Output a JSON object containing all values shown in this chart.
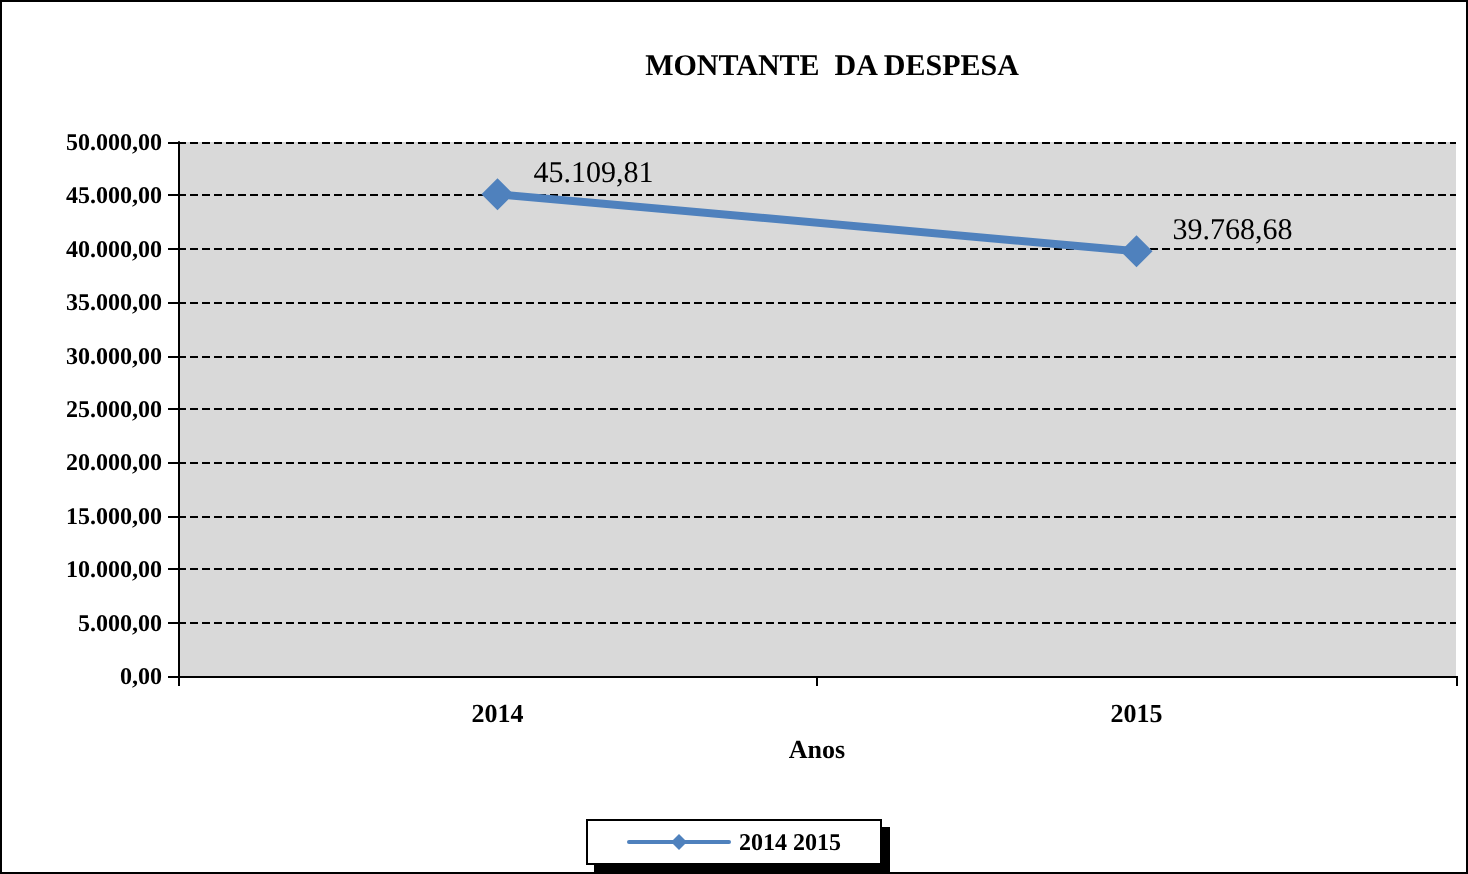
{
  "chart_data": {
    "type": "line",
    "title": "MONTANTE  DA DESPESA",
    "xlabel": "Anos",
    "categories": [
      "2014",
      "2015"
    ],
    "series": [
      {
        "name": "2014 2015",
        "color": "#4f81bd",
        "values": [
          45109.81,
          39768.68
        ],
        "value_labels": [
          "45.109,81",
          "39.768,68"
        ]
      }
    ],
    "ylim": [
      0,
      50000
    ],
    "yticks": [
      {
        "value": 0,
        "label": "0,00"
      },
      {
        "value": 5000,
        "label": "5.000,00"
      },
      {
        "value": 10000,
        "label": "10.000,00"
      },
      {
        "value": 15000,
        "label": "15.000,00"
      },
      {
        "value": 20000,
        "label": "20.000,00"
      },
      {
        "value": 25000,
        "label": "25.000,00"
      },
      {
        "value": 30000,
        "label": "30.000,00"
      },
      {
        "value": 35000,
        "label": "35.000,00"
      },
      {
        "value": 40000,
        "label": "40.000,00"
      },
      {
        "value": 45000,
        "label": "45.000,00"
      },
      {
        "value": 50000,
        "label": "50.000,00"
      }
    ],
    "grid": "y",
    "legend": "bottom",
    "marker": "diamond",
    "line_style": "solid"
  }
}
